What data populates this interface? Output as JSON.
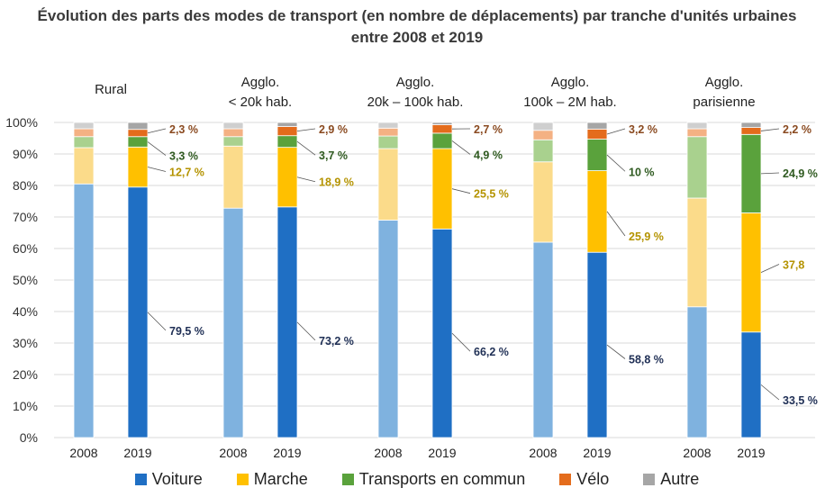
{
  "chart_data": {
    "type": "bar",
    "stacked": true,
    "title_line1": "Évolution des parts des modes de transport (en nombre de déplacements) par tranche d'unités urbaines",
    "title_line2": "entre 2008 et 2019",
    "y_ticks": [
      "0%",
      "10%",
      "20%",
      "30%",
      "40%",
      "50%",
      "60%",
      "70%",
      "80%",
      "90%",
      "100%"
    ],
    "ylim": [
      0,
      100
    ],
    "groups": [
      {
        "label": [
          "Rural"
        ],
        "years": [
          "2008",
          "2019"
        ],
        "values2008": {
          "Voiture": 80.5,
          "Marche": 11.5,
          "Transports en commun": 3.5,
          "Vélo": 2.5,
          "Autre": 2
        },
        "values2019": {
          "Voiture": 79.5,
          "Marche": 12.7,
          "Transports en commun": 3.3,
          "Vélo": 2.3,
          "Autre": 2.2
        },
        "labels2019": {
          "Voiture": "79,5 %",
          "Marche": "12,7 %",
          "Transports en commun": "3,3 %",
          "Vélo": "2,3 %"
        }
      },
      {
        "label": [
          "Agglo.",
          "< 20k hab."
        ],
        "years": [
          "2008",
          "2019"
        ],
        "values2008": {
          "Voiture": 72.8,
          "Marche": 19.7,
          "Transports en commun": 3,
          "Vélo": 2.5,
          "Autre": 2
        },
        "values2019": {
          "Voiture": 73.2,
          "Marche": 18.9,
          "Transports en commun": 3.7,
          "Vélo": 2.9,
          "Autre": 1.3
        },
        "labels2019": {
          "Voiture": "73,2 %",
          "Marche": "18,9 %",
          "Transports en commun": "3,7 %",
          "Vélo": "2,9 %"
        }
      },
      {
        "label": [
          "Agglo.",
          "20k – 100k hab."
        ],
        "years": [
          "2008",
          "2019"
        ],
        "values2008": {
          "Voiture": 69,
          "Marche": 22.7,
          "Transports en commun": 4,
          "Vélo": 2.5,
          "Autre": 1.8
        },
        "values2019": {
          "Voiture": 66.2,
          "Marche": 25.5,
          "Transports en commun": 4.9,
          "Vélo": 2.7,
          "Autre": 0.7
        },
        "labels2019": {
          "Voiture": "66,2 %",
          "Marche": "25,5 %",
          "Transports en commun": "4,9 %",
          "Vélo": "2,7 %"
        }
      },
      {
        "label": [
          "Agglo.",
          "100k – 2M hab."
        ],
        "years": [
          "2008",
          "2019"
        ],
        "values2008": {
          "Voiture": 62,
          "Marche": 25.5,
          "Transports en commun": 7,
          "Vélo": 3,
          "Autre": 2.5
        },
        "values2019": {
          "Voiture": 58.8,
          "Marche": 25.9,
          "Transports en commun": 10,
          "Vélo": 3.2,
          "Autre": 2.1
        },
        "labels2019": {
          "Voiture": "58,8 %",
          "Marche": "25,9 %",
          "Transports en commun": "10 %",
          "Vélo": "3,2 %"
        }
      },
      {
        "label": [
          "Agglo.",
          "parisienne"
        ],
        "years": [
          "2008",
          "2019"
        ],
        "values2008": {
          "Voiture": 41.5,
          "Marche": 34.5,
          "Transports en commun": 19.5,
          "Vélo": 2.5,
          "Autre": 2
        },
        "values2019": {
          "Voiture": 33.5,
          "Marche": 37.8,
          "Transports en commun": 24.9,
          "Vélo": 2.2,
          "Autre": 1.6
        },
        "labels2019": {
          "Voiture": "33,5 %",
          "Marche": "37,8",
          "Transports en commun": "24,9 %",
          "Vélo": "2,2 %"
        }
      }
    ],
    "series": [
      {
        "name": "Voiture",
        "color2019": "#1f6fc4",
        "color2008": "#7fb2df",
        "labelColor": "#1f2f55"
      },
      {
        "name": "Marche",
        "color2019": "#ffc000",
        "color2008": "#fbdb8a",
        "labelColor": "#b49300"
      },
      {
        "name": "Transports en commun",
        "color2019": "#5aa23c",
        "color2008": "#a9d18e",
        "labelColor": "#2f5a20"
      },
      {
        "name": "Vélo",
        "color2019": "#e46c1c",
        "color2008": "#f4b183",
        "labelColor": "#8a4a20"
      },
      {
        "name": "Autre",
        "color2019": "#a6a6a6",
        "color2008": "#cfcfcf",
        "labelColor": "#555555"
      }
    ]
  }
}
